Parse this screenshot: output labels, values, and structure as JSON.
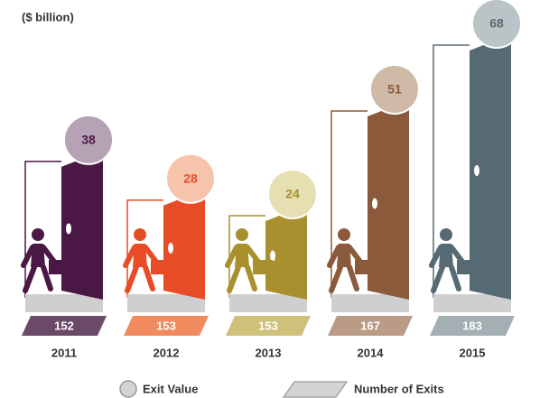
{
  "chart_data": {
    "type": "door",
    "unit_label": "($ billion)",
    "categories": [
      "2011",
      "2012",
      "2013",
      "2014",
      "2015"
    ],
    "series": [
      {
        "name": "Exit Value",
        "values": [
          38,
          28,
          24,
          51,
          68
        ],
        "colors": [
          "#4b1846",
          "#e84c26",
          "#a8902e",
          "#8a5a3a",
          "#566a73"
        ],
        "bubble_colors": [
          "#b5a2b4",
          "#f6c3ab",
          "#e6dfb2",
          "#cfbaa8",
          "#bac4c7"
        ]
      },
      {
        "name": "Number of Exits",
        "values": [
          152,
          153,
          153,
          167,
          183
        ],
        "colors": [
          "#6b4a68",
          "#f08a5f",
          "#cfc07a",
          "#b99b86",
          "#a4afb3"
        ]
      }
    ]
  }
}
